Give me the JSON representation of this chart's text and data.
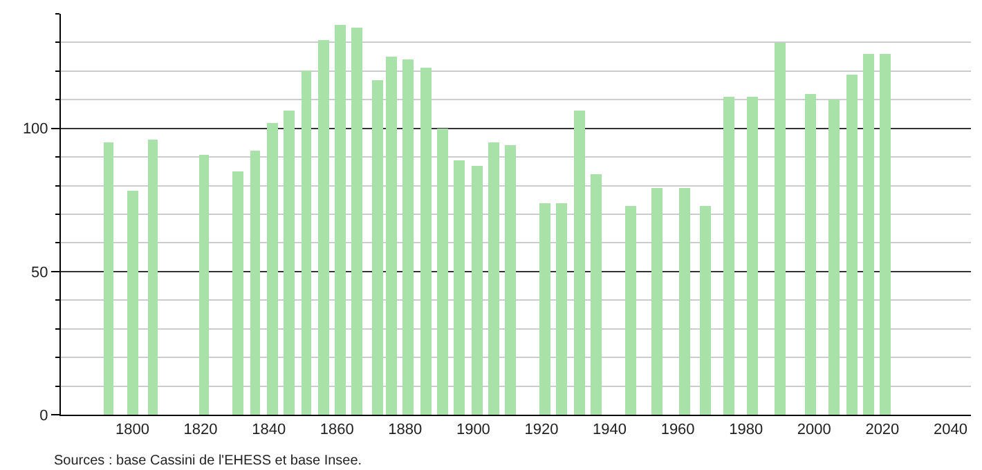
{
  "chart_data": {
    "type": "bar",
    "x": [
      1793,
      1800,
      1806,
      1821,
      1831,
      1836,
      1841,
      1846,
      1851,
      1856,
      1861,
      1866,
      1872,
      1876,
      1881,
      1886,
      1891,
      1896,
      1901,
      1906,
      1911,
      1921,
      1926,
      1931,
      1936,
      1946,
      1954,
      1962,
      1968,
      1975,
      1982,
      1990,
      1999,
      2006,
      2011,
      2016,
      2021
    ],
    "values": [
      95,
      78,
      96,
      91,
      85,
      92,
      102,
      106,
      120,
      131,
      136,
      135,
      117,
      125,
      124,
      121,
      100,
      89,
      87,
      95,
      94,
      74,
      74,
      106,
      84,
      73,
      79,
      79,
      73,
      111,
      111,
      130,
      112,
      110,
      119,
      126,
      126
    ],
    "color": "#a8e2a8",
    "xlim": [
      1779,
      2046
    ],
    "xticks": [
      1800,
      1820,
      1840,
      1860,
      1880,
      1900,
      1920,
      1940,
      1960,
      1980,
      2000,
      2020,
      2040
    ],
    "ylim": [
      0,
      140
    ],
    "yticks": [
      0,
      {
        "value": 10,
        "label": null
      },
      {
        "value": 20,
        "label": null
      },
      {
        "value": 30,
        "label": null
      },
      {
        "value": 40,
        "label": null
      },
      50,
      {
        "value": 60,
        "label": null
      },
      {
        "value": 70,
        "label": null
      },
      {
        "value": 80,
        "label": null
      },
      {
        "value": 90,
        "label": null
      },
      100,
      {
        "value": 110,
        "label": null
      },
      {
        "value": 120,
        "label": null
      },
      {
        "value": 130,
        "label": null
      },
      {
        "value": 140,
        "label": null
      }
    ],
    "grid": "y",
    "annotations": [
      "Sources : base Cassini de l'EHESS et base Insee."
    ]
  }
}
